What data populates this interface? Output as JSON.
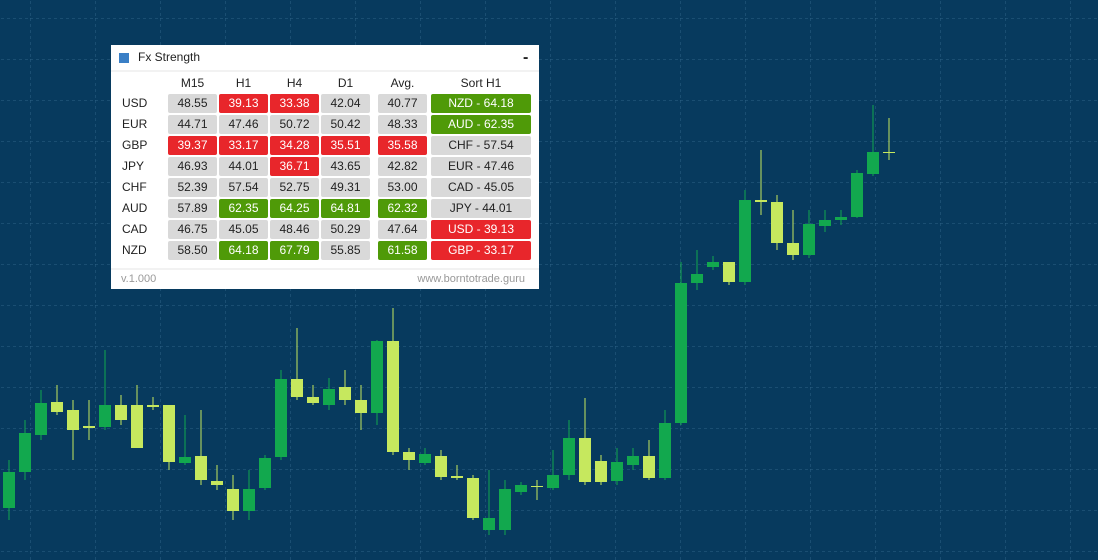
{
  "widget": {
    "title": "Fx Strength",
    "minimize": "-",
    "columns": [
      "M15",
      "H1",
      "H4",
      "D1",
      "Avg.",
      "Sort H1"
    ],
    "palette": {
      "gray": "#d9d9d9",
      "red": "#e8262b",
      "green": "#4f9a08"
    },
    "rows": [
      {
        "label": "USD",
        "cells": [
          {
            "text": "48.55",
            "color": "gray"
          },
          {
            "text": "39.13",
            "color": "red"
          },
          {
            "text": "33.38",
            "color": "red"
          },
          {
            "text": "42.04",
            "color": "gray"
          },
          {
            "text": "40.77",
            "color": "gray"
          }
        ],
        "sort": {
          "text": "NZD - 64.18",
          "color": "green"
        }
      },
      {
        "label": "EUR",
        "cells": [
          {
            "text": "44.71",
            "color": "gray"
          },
          {
            "text": "47.46",
            "color": "gray"
          },
          {
            "text": "50.72",
            "color": "gray"
          },
          {
            "text": "50.42",
            "color": "gray"
          },
          {
            "text": "48.33",
            "color": "gray"
          }
        ],
        "sort": {
          "text": "AUD - 62.35",
          "color": "green"
        }
      },
      {
        "label": "GBP",
        "cells": [
          {
            "text": "39.37",
            "color": "red"
          },
          {
            "text": "33.17",
            "color": "red"
          },
          {
            "text": "34.28",
            "color": "red"
          },
          {
            "text": "35.51",
            "color": "red"
          },
          {
            "text": "35.58",
            "color": "red"
          }
        ],
        "sort": {
          "text": "CHF - 57.54",
          "color": "gray"
        }
      },
      {
        "label": "JPY",
        "cells": [
          {
            "text": "46.93",
            "color": "gray"
          },
          {
            "text": "44.01",
            "color": "gray"
          },
          {
            "text": "36.71",
            "color": "red"
          },
          {
            "text": "43.65",
            "color": "gray"
          },
          {
            "text": "42.82",
            "color": "gray"
          }
        ],
        "sort": {
          "text": "EUR - 47.46",
          "color": "gray"
        }
      },
      {
        "label": "CHF",
        "cells": [
          {
            "text": "52.39",
            "color": "gray"
          },
          {
            "text": "57.54",
            "color": "gray"
          },
          {
            "text": "52.75",
            "color": "gray"
          },
          {
            "text": "49.31",
            "color": "gray"
          },
          {
            "text": "53.00",
            "color": "gray"
          }
        ],
        "sort": {
          "text": "CAD - 45.05",
          "color": "gray"
        }
      },
      {
        "label": "AUD",
        "cells": [
          {
            "text": "57.89",
            "color": "gray"
          },
          {
            "text": "62.35",
            "color": "green"
          },
          {
            "text": "64.25",
            "color": "green"
          },
          {
            "text": "64.81",
            "color": "green"
          },
          {
            "text": "62.32",
            "color": "green"
          }
        ],
        "sort": {
          "text": "JPY - 44.01",
          "color": "gray"
        }
      },
      {
        "label": "CAD",
        "cells": [
          {
            "text": "46.75",
            "color": "gray"
          },
          {
            "text": "45.05",
            "color": "gray"
          },
          {
            "text": "48.46",
            "color": "gray"
          },
          {
            "text": "50.29",
            "color": "gray"
          },
          {
            "text": "47.64",
            "color": "gray"
          }
        ],
        "sort": {
          "text": "USD - 39.13",
          "color": "red"
        }
      },
      {
        "label": "NZD",
        "cells": [
          {
            "text": "58.50",
            "color": "gray"
          },
          {
            "text": "64.18",
            "color": "green"
          },
          {
            "text": "67.79",
            "color": "green"
          },
          {
            "text": "55.85",
            "color": "gray"
          },
          {
            "text": "61.58",
            "color": "green"
          }
        ],
        "sort": {
          "text": "GBP - 33.17",
          "color": "red"
        }
      }
    ],
    "version": "v.1.000",
    "website": "www.borntotrade.guru"
  }
}
